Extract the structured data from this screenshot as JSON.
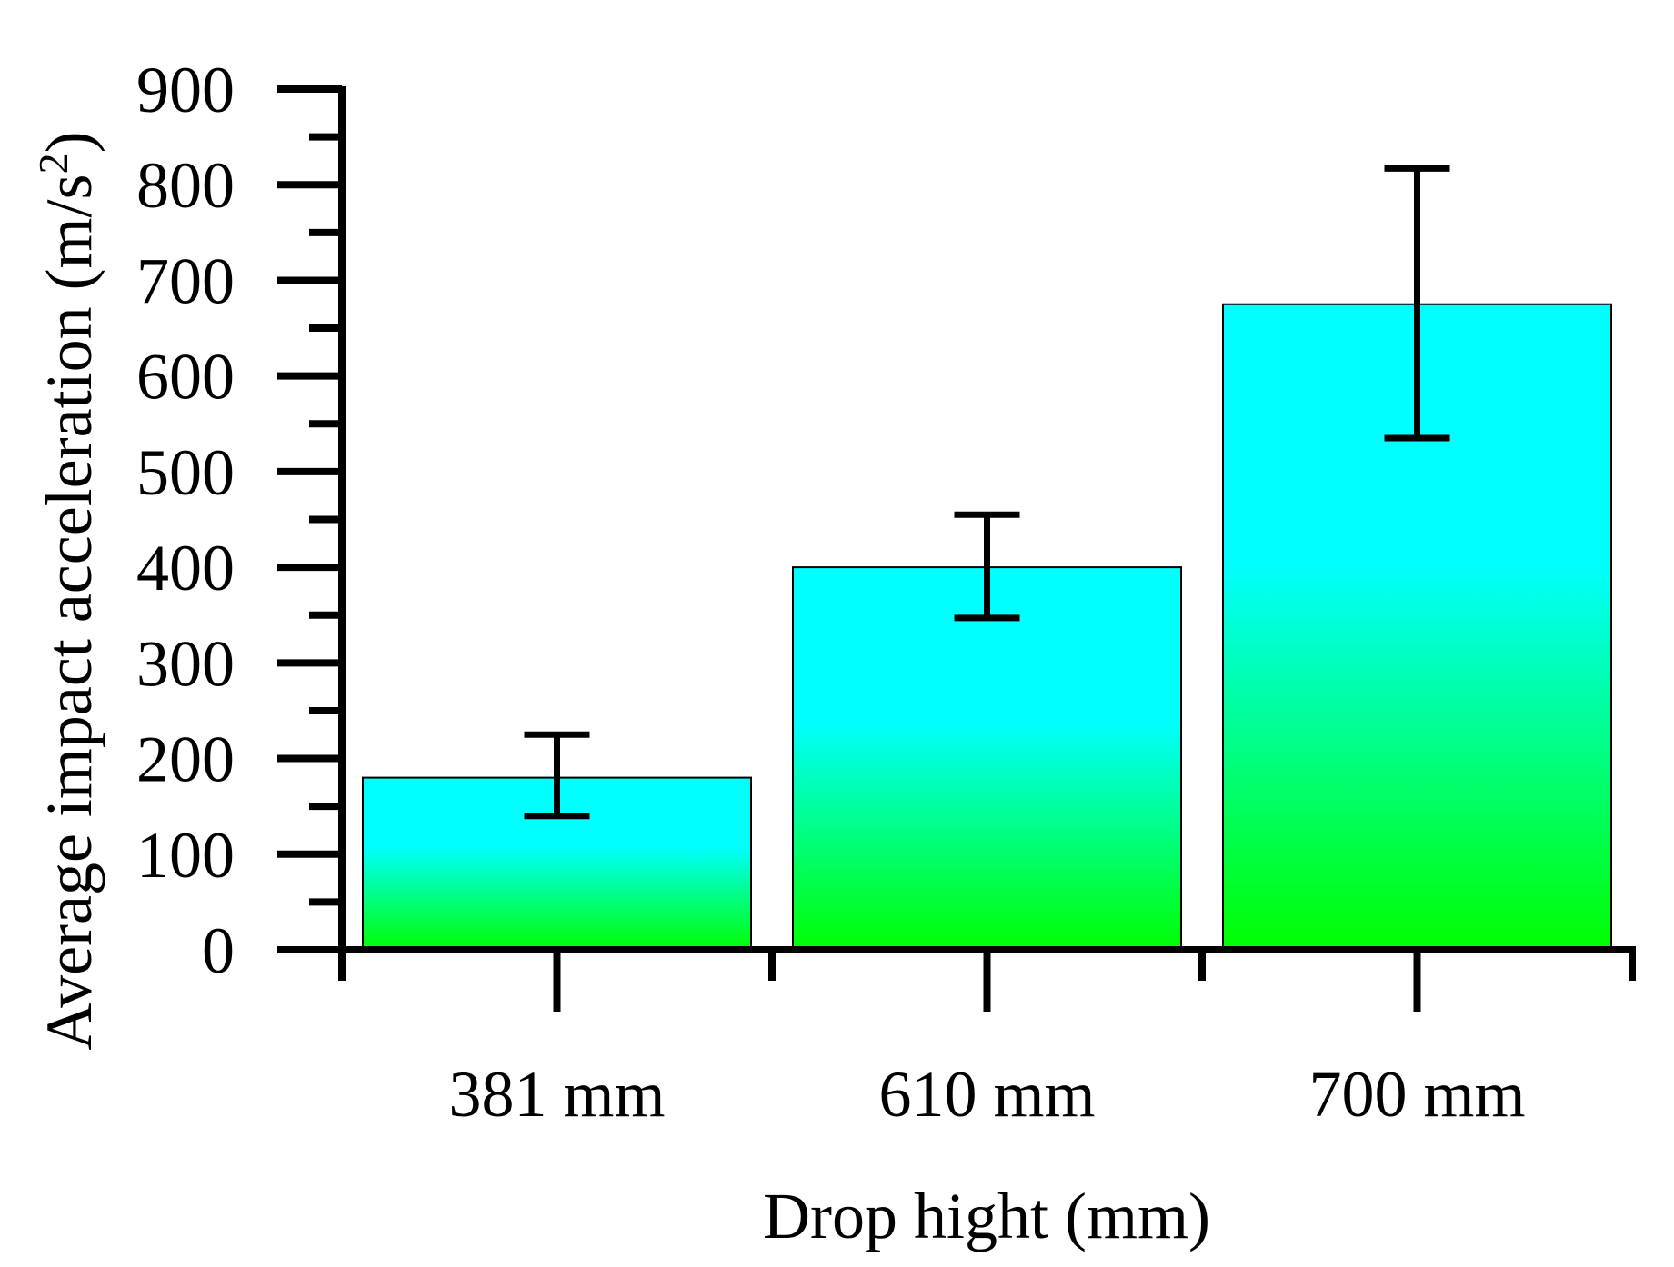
{
  "chart_data": {
    "type": "bar",
    "title": "",
    "xlabel": "Drop hight (mm)",
    "ylabel": "Average impact acceleration (m/s",
    "ylabel_superscript": "2",
    "ylabel_suffix": ")",
    "categories": [
      "381 mm",
      "610 mm",
      "700 mm"
    ],
    "values": [
      180,
      400,
      675
    ],
    "error_low": [
      140,
      347,
      535
    ],
    "error_high": [
      225,
      455,
      817
    ],
    "ylim": [
      0,
      900
    ],
    "y_major_step": 100,
    "y_minor_step": 50,
    "yticks": [
      "0",
      "100",
      "200",
      "300",
      "400",
      "500",
      "600",
      "700",
      "800",
      "900"
    ],
    "grid": false,
    "legend": "none",
    "colors": {
      "bar_top": "#00ffff",
      "bar_bottom": "#00ff00",
      "bar_outline": "#000000",
      "axis": "#000000",
      "error_bar": "#000000"
    }
  }
}
